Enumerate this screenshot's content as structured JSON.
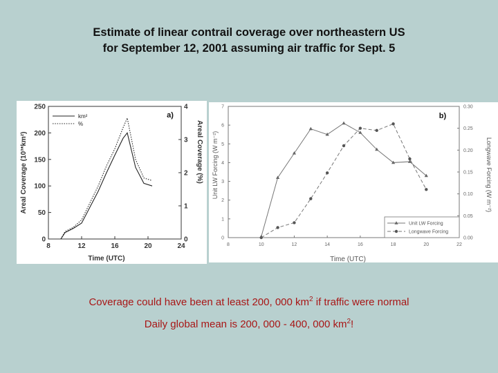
{
  "title": {
    "line1": "Estimate of linear contrail coverage over northeastern US",
    "line2": "for September 12, 2001 assuming air traffic for Sept. 5"
  },
  "caption": {
    "line1_text": "Coverage could have been at least 200, 000 km",
    "line1_sup": "2",
    "line1_end": " if traffic were normal",
    "line2_text": "Daily global mean is 200, 000 - 400, 000 km",
    "line2_sup": "2",
    "line2_end": "!"
  },
  "chart_data": [
    {
      "type": "line",
      "panel_label": "a)",
      "xlabel": "Time (UTC)",
      "ylabel": "Areal Coverage (10³*km²)",
      "y2label": "Areal Coverage (%)",
      "xlim": [
        8,
        24
      ],
      "ylim": [
        0,
        250
      ],
      "y2lim": [
        0,
        4
      ],
      "xticks": [
        "8",
        "12",
        "16",
        "20",
        "24"
      ],
      "yticks": [
        "0",
        "50",
        "100",
        "150",
        "200",
        "250"
      ],
      "y2ticks": [
        "0",
        "1",
        "2",
        "3",
        "4"
      ],
      "legend": [
        "km²",
        "%"
      ],
      "series": [
        {
          "name": "km²",
          "style": "solid",
          "x": [
            9.5,
            10,
            11,
            12,
            13,
            14,
            15,
            16,
            17,
            17.5,
            18.5,
            19.5,
            20.5
          ],
          "values": [
            0,
            12,
            20,
            30,
            60,
            90,
            125,
            158,
            190,
            200,
            135,
            105,
            100
          ]
        },
        {
          "name": "%",
          "style": "dotted",
          "x": [
            9.5,
            10,
            11,
            12,
            13,
            14,
            15,
            16,
            17,
            17.5,
            18.5,
            19.5,
            20.5
          ],
          "values": [
            0,
            14,
            22,
            36,
            68,
            100,
            138,
            170,
            210,
            228,
            150,
            115,
            110
          ]
        }
      ]
    },
    {
      "type": "line",
      "panel_label": "b)",
      "xlabel": "Time (UTC)",
      "ylabel": "Unit LW Forcing (W m⁻²)",
      "y2label": "Longwave Forcing (W m⁻²)",
      "xlim": [
        8,
        22
      ],
      "ylim": [
        0,
        7
      ],
      "y2lim": [
        0,
        0.3
      ],
      "xticks": [
        "8",
        "10",
        "12",
        "14",
        "16",
        "18",
        "20",
        "22"
      ],
      "yticks": [
        "0",
        "1",
        "2",
        "3",
        "4",
        "5",
        "6",
        "7"
      ],
      "y2ticks": [
        "0.00",
        "0.05",
        "0.10",
        "0.15",
        "0.20",
        "0.25",
        "0.30"
      ],
      "legend_position": "bottom-right",
      "series": [
        {
          "name": "Unit LW Forcing",
          "style": "solid",
          "marker": "triangle",
          "axis": "left",
          "x": [
            10,
            11,
            12,
            13,
            14,
            15,
            16,
            17,
            18,
            19,
            20
          ],
          "values": [
            0.05,
            3.2,
            4.5,
            5.8,
            5.5,
            6.1,
            5.6,
            4.7,
            4.0,
            4.05,
            3.3
          ]
        },
        {
          "name": "Longwave Forcing",
          "style": "dashed",
          "marker": "circle",
          "axis": "right",
          "x": [
            10,
            11,
            12,
            13,
            14,
            15,
            16,
            17,
            18,
            19,
            20
          ],
          "values": [
            0.0,
            0.023,
            0.034,
            0.089,
            0.148,
            0.21,
            0.25,
            0.245,
            0.26,
            0.18,
            0.11
          ]
        }
      ]
    }
  ]
}
